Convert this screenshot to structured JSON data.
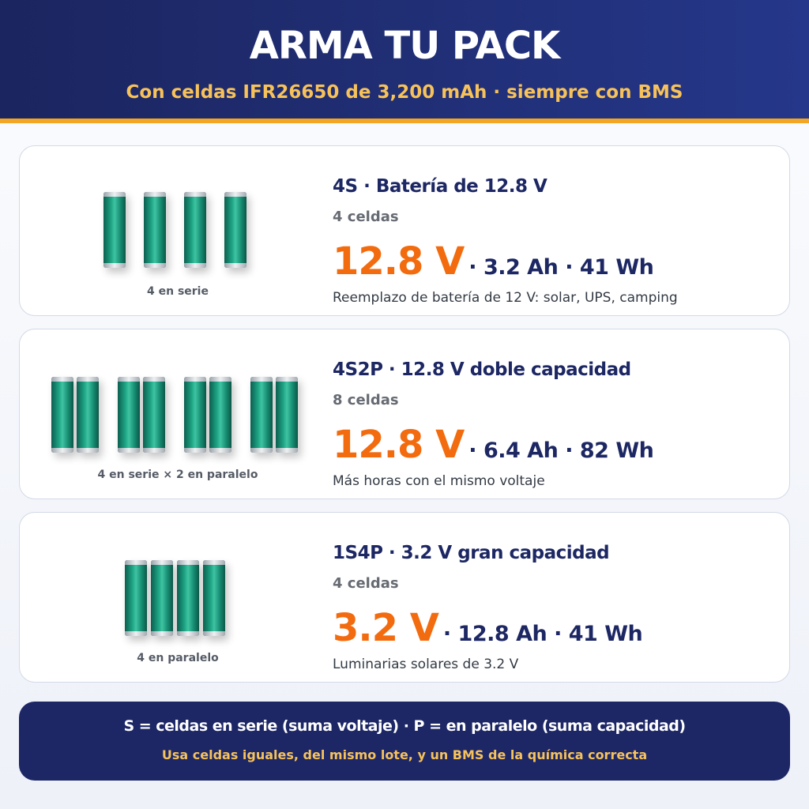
{
  "header": {
    "title": "ARMA TU PACK",
    "subtitle": "Con celdas IFR26650 de 3,200 mAh · siempre con BMS"
  },
  "packs": [
    {
      "diagram_label": "4 en serie",
      "heading": "4S · Batería de 12.8 V",
      "cells": "4 celdas",
      "voltage": "12.8 V",
      "specs": "· 3.2 Ah · 41 Wh",
      "use": "Reemplazo de batería de 12 V: solar, UPS, camping"
    },
    {
      "diagram_label": "4 en serie × 2 en paralelo",
      "heading": "4S2P · 12.8 V doble capacidad",
      "cells": "8 celdas",
      "voltage": "12.8 V",
      "specs": "· 6.4 Ah · 82 Wh",
      "use": "Más horas con el mismo voltaje"
    },
    {
      "diagram_label": "4 en paralelo",
      "heading": "1S4P · 3.2 V gran capacidad",
      "cells": "4 celdas",
      "voltage": "3.2 V",
      "specs": "· 12.8 Ah · 41 Wh",
      "use": "Luminarias solares de 3.2 V"
    }
  ],
  "footer": {
    "line1": "S = celdas en serie (suma voltaje) · P = en paralelo (suma capacidad)",
    "line2": "Usa celdas iguales, del mismo lote, y un BMS de la química correcta"
  }
}
